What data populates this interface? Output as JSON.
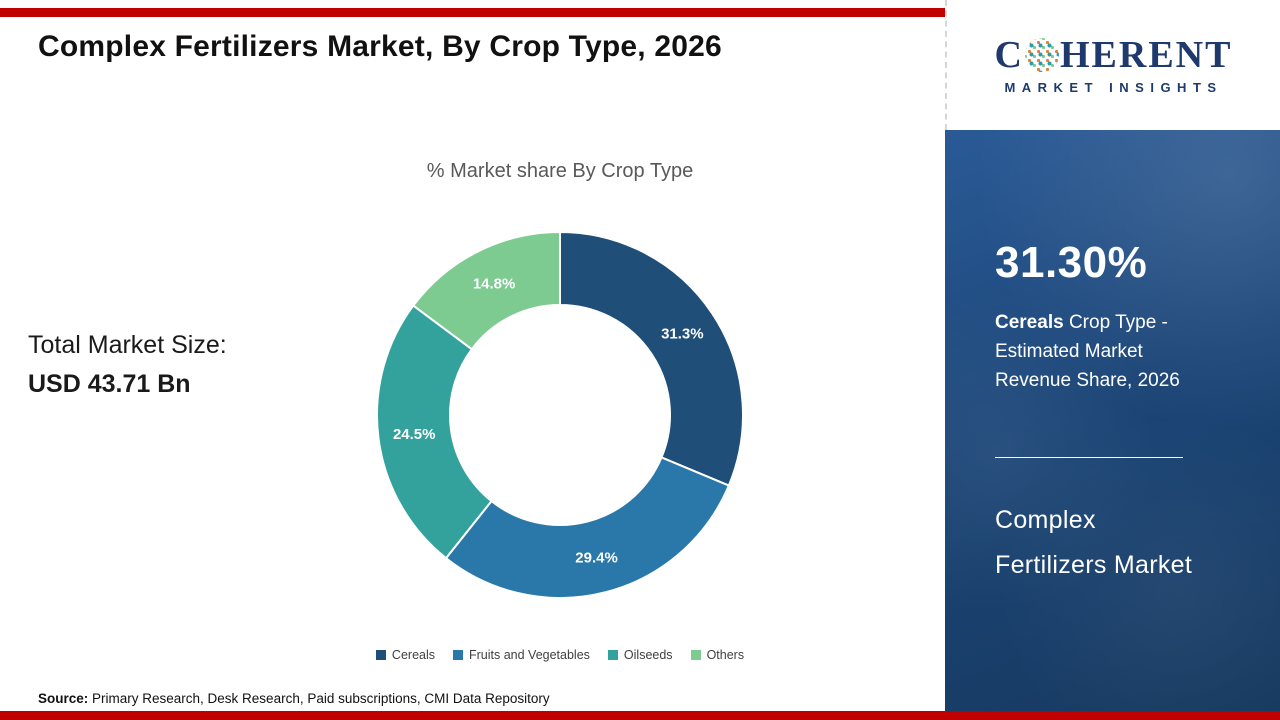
{
  "header": {
    "title": "Complex Fertilizers Market, By Crop Type, 2026",
    "logo": {
      "part1": "C",
      "part2": "HERENT",
      "globe_icon": "dotted-globe-as-letter-o",
      "subtitle": "MARKET INSIGHTS",
      "navy": "#1e3a6d"
    }
  },
  "chart_data": {
    "type": "pie",
    "donut": true,
    "title": "% Market share By Crop Type",
    "categories": [
      "Cereals",
      "Fruits and Vegetables",
      "Oilseeds",
      "Others"
    ],
    "values": [
      31.3,
      29.4,
      24.5,
      14.8
    ],
    "labels": [
      "31.3%",
      "29.4%",
      "24.5%",
      "14.8%"
    ],
    "colors": [
      "#1f4e79",
      "#2a78a9",
      "#34a29c",
      "#7ecb92"
    ],
    "legend_position": "bottom",
    "start_angle_deg": 0,
    "direction": "clockwise"
  },
  "left_panel": {
    "market_size_label": "Total Market Size:",
    "market_size_value": "USD 43.71 Bn"
  },
  "sidebar": {
    "highlight_value": "31.30%",
    "highlight_bold": "Cereals",
    "highlight_rest": " Crop Type - Estimated Market Revenue Share, 2026",
    "footer_line1": "Complex",
    "footer_line2": "Fertilizers Market"
  },
  "footer": {
    "source_label": "Source:",
    "source_text": " Primary Research, Desk Research, Paid subscriptions, CMI Data Repository"
  },
  "accent_colors": {
    "red_bar": "#c00000",
    "panel_blue": "#1c4678"
  }
}
